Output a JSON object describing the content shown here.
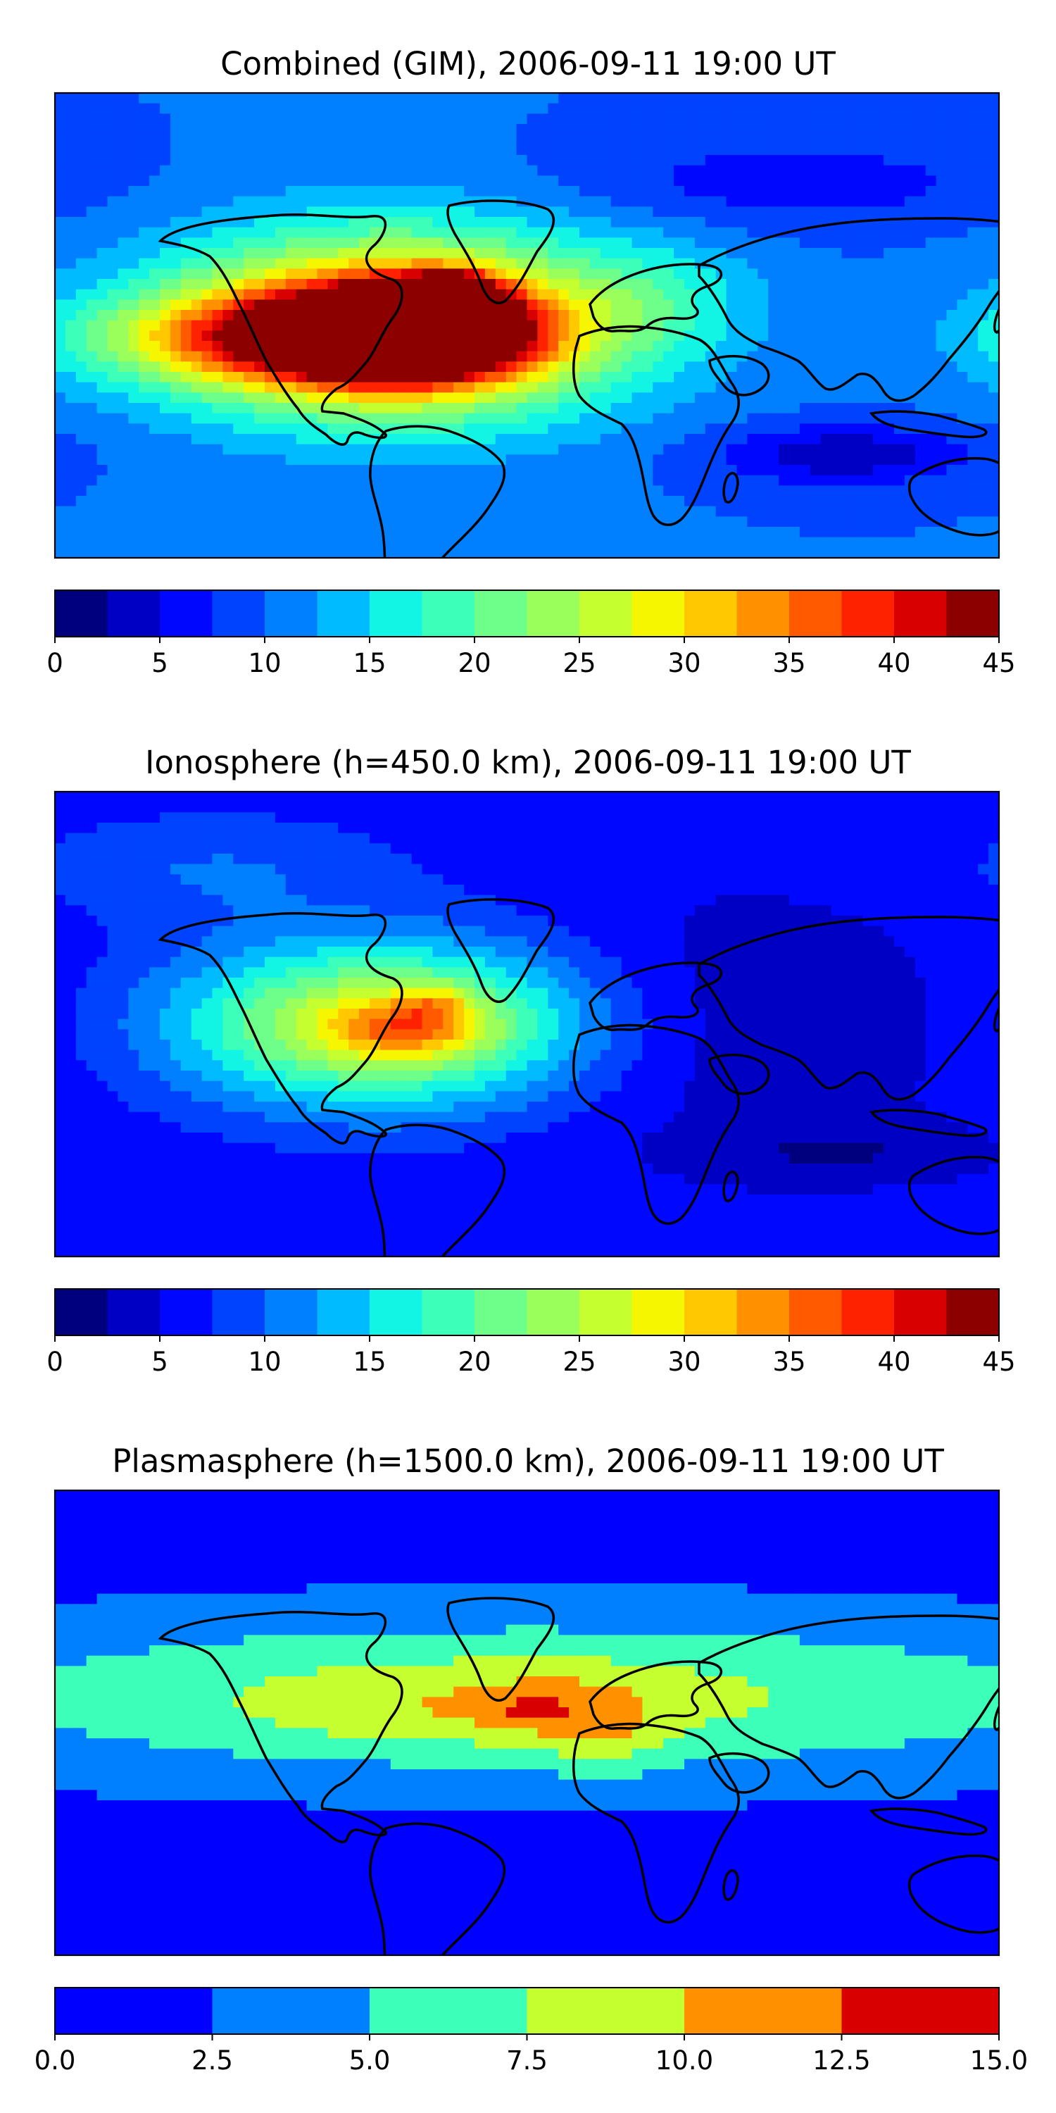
{
  "chart_data": [
    {
      "type": "heatmap",
      "title": "Combined (GIM), 2006-09-11 19:00 UT",
      "colorbar": {
        "range": [
          0,
          45
        ],
        "step": 2.5,
        "ticks": [
          "0",
          "5",
          "10",
          "15",
          "20",
          "25",
          "30",
          "35",
          "40",
          "45"
        ],
        "colors": [
          "#00007f",
          "#0000c4",
          "#0007ff",
          "#0043ff",
          "#007fff",
          "#00bbff",
          "#12f4e4",
          "#3cffba",
          "#6dff89",
          "#9bff5b",
          "#c6ff30",
          "#f6f600",
          "#ffc800",
          "#ff9100",
          "#ff5a00",
          "#ff2200",
          "#d80000",
          "#8c0000"
        ]
      },
      "field": {
        "background_value": 10,
        "features": [
          {
            "lon": -50,
            "lat": 0,
            "value": 28,
            "sx": 60,
            "sy": 25
          },
          {
            "lon": -45,
            "lat": -3,
            "value": 34,
            "sx": 30,
            "sy": 12
          },
          {
            "lon": -30,
            "lat": 8,
            "value": 39,
            "sx": 12,
            "sy": 7
          },
          {
            "lon": -90,
            "lat": -5,
            "value": 20,
            "sx": 50,
            "sy": 12
          },
          {
            "lon": 120,
            "lat": -50,
            "value": -7,
            "sx": 35,
            "sy": 8
          },
          {
            "lon": 100,
            "lat": 55,
            "value": -4,
            "sx": 60,
            "sy": 12
          },
          {
            "lon": 50,
            "lat": 10,
            "value": 4,
            "sx": 25,
            "sy": 15
          }
        ]
      }
    },
    {
      "type": "heatmap",
      "title": "Ionosphere  (h=450.0 km), 2006-09-11 19:00 UT",
      "colorbar": {
        "range": [
          0,
          45
        ],
        "step": 2.5,
        "ticks": [
          "0",
          "5",
          "10",
          "15",
          "20",
          "25",
          "30",
          "35",
          "40",
          "45"
        ],
        "colors": [
          "#00007f",
          "#0000c4",
          "#0007ff",
          "#0043ff",
          "#007fff",
          "#00bbff",
          "#12f4e4",
          "#3cffba",
          "#6dff89",
          "#9bff5b",
          "#c6ff30",
          "#f6f600",
          "#ffc800",
          "#ff9100",
          "#ff5a00",
          "#ff2200",
          "#d80000",
          "#8c0000"
        ]
      },
      "field": {
        "background_value": 6,
        "features": [
          {
            "lon": -55,
            "lat": 0,
            "value": 22,
            "sx": 55,
            "sy": 22
          },
          {
            "lon": -45,
            "lat": -2,
            "value": 10,
            "sx": 20,
            "sy": 8
          },
          {
            "lon": -35,
            "lat": 8,
            "value": 6,
            "sx": 10,
            "sy": 5
          },
          {
            "lon": 80,
            "lat": 0,
            "value": -3,
            "sx": 60,
            "sy": 35
          },
          {
            "lon": 120,
            "lat": -50,
            "value": -3,
            "sx": 40,
            "sy": 8
          },
          {
            "lon": -120,
            "lat": 60,
            "value": 4,
            "sx": 50,
            "sy": 15
          }
        ]
      }
    },
    {
      "type": "heatmap",
      "title": "Plasmasphere (h=1500.0 km), 2006-09-11 19:00 UT",
      "colorbar": {
        "range": [
          0,
          15
        ],
        "step": 2.5,
        "ticks": [
          "0.0",
          "2.5",
          "5.0",
          "7.5",
          "10.0",
          "12.5",
          "15.0"
        ],
        "colors": [
          "#0000ff",
          "#0080ff",
          "#3cffba",
          "#c6ff30",
          "#ff9100",
          "#d80000"
        ]
      },
      "field": {
        "background_value": 1.5,
        "features": [
          {
            "lon": 0,
            "lat": 10,
            "value": 7,
            "sx": 170,
            "sy": 22
          },
          {
            "lon": 5,
            "lat": 5,
            "value": 3,
            "sx": 25,
            "sy": 10
          },
          {
            "lon": 30,
            "lat": -5,
            "value": 2.5,
            "sx": 15,
            "sy": 12
          },
          {
            "lon": 2,
            "lat": 5,
            "value": 3,
            "sx": 6,
            "sy": 3
          },
          {
            "lon": -60,
            "lat": 5,
            "value": 1.5,
            "sx": 30,
            "sy": 10
          }
        ]
      }
    }
  ]
}
